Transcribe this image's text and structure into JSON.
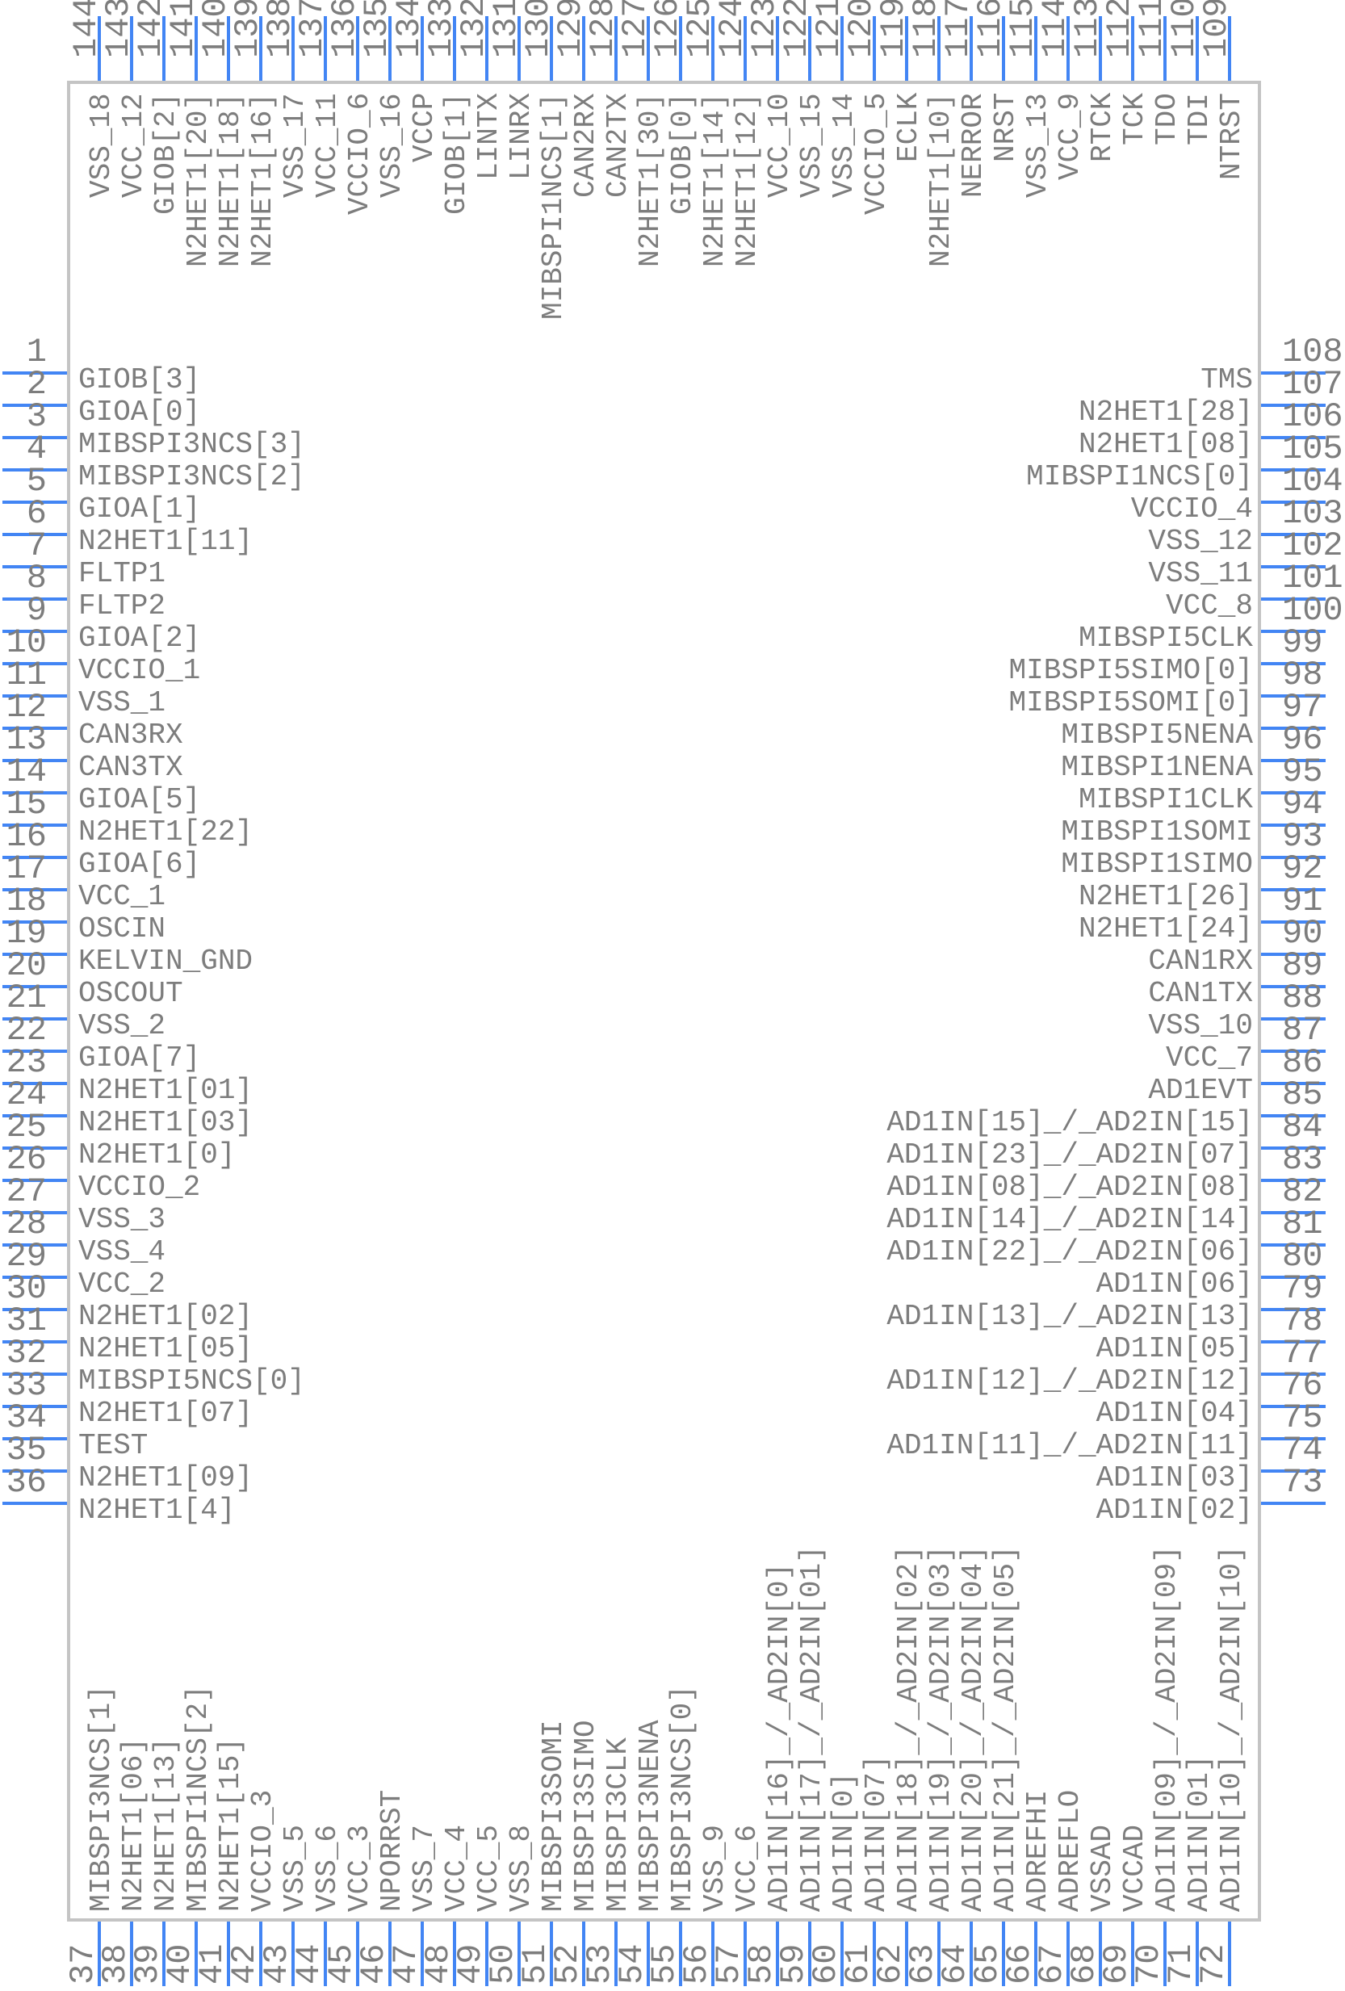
{
  "diagram_type": "chip-pinout",
  "colors": {
    "pin_line": "#4285f4",
    "text": "#7d7d7d",
    "body_outline": "#c4c4c4",
    "background": "#ffffff"
  },
  "chip": {
    "pins": {
      "top": [
        {
          "n": "144",
          "label": "VSS_18"
        },
        {
          "n": "143",
          "label": "VCC_12"
        },
        {
          "n": "142",
          "label": "GIOB[2]"
        },
        {
          "n": "141",
          "label": "N2HET1[20]"
        },
        {
          "n": "140",
          "label": "N2HET1[18]"
        },
        {
          "n": "139",
          "label": "N2HET1[16]"
        },
        {
          "n": "138",
          "label": "VSS_17"
        },
        {
          "n": "137",
          "label": "VCC_11"
        },
        {
          "n": "136",
          "label": "VCCIO_6"
        },
        {
          "n": "135",
          "label": "VSS_16"
        },
        {
          "n": "134",
          "label": "VCCP"
        },
        {
          "n": "133",
          "label": "GIOB[1]"
        },
        {
          "n": "132",
          "label": "LINTX"
        },
        {
          "n": "131",
          "label": "LINRX"
        },
        {
          "n": "130",
          "label": "MIBSPI1NCS[1]"
        },
        {
          "n": "129",
          "label": "CAN2RX"
        },
        {
          "n": "128",
          "label": "CAN2TX"
        },
        {
          "n": "127",
          "label": "N2HET1[30]"
        },
        {
          "n": "126",
          "label": "GIOB[0]"
        },
        {
          "n": "125",
          "label": "N2HET1[14]"
        },
        {
          "n": "124",
          "label": "N2HET1[12]"
        },
        {
          "n": "123",
          "label": "VCC_10"
        },
        {
          "n": "122",
          "label": "VSS_15"
        },
        {
          "n": "121",
          "label": "VSS_14"
        },
        {
          "n": "120",
          "label": "VCCIO_5"
        },
        {
          "n": "119",
          "label": "ECLK"
        },
        {
          "n": "118",
          "label": "N2HET1[10]"
        },
        {
          "n": "117",
          "label": "NERROR"
        },
        {
          "n": "116",
          "label": "NRST"
        },
        {
          "n": "115",
          "label": "VSS_13"
        },
        {
          "n": "114",
          "label": "VCC_9"
        },
        {
          "n": "113",
          "label": "RTCK"
        },
        {
          "n": "112",
          "label": "TCK"
        },
        {
          "n": "111",
          "label": "TDO"
        },
        {
          "n": "110",
          "label": "TDI"
        },
        {
          "n": "109",
          "label": "NTRST"
        }
      ],
      "left": [
        {
          "n": "1",
          "label": "GIOB[3]"
        },
        {
          "n": "2",
          "label": "GIOA[0]"
        },
        {
          "n": "3",
          "label": "MIBSPI3NCS[3]"
        },
        {
          "n": "4",
          "label": "MIBSPI3NCS[2]"
        },
        {
          "n": "5",
          "label": "GIOA[1]"
        },
        {
          "n": "6",
          "label": "N2HET1[11]"
        },
        {
          "n": "7",
          "label": "FLTP1"
        },
        {
          "n": "8",
          "label": "FLTP2"
        },
        {
          "n": "9",
          "label": "GIOA[2]"
        },
        {
          "n": "10",
          "label": "VCCIO_1"
        },
        {
          "n": "11",
          "label": "VSS_1"
        },
        {
          "n": "12",
          "label": "CAN3RX"
        },
        {
          "n": "13",
          "label": "CAN3TX"
        },
        {
          "n": "14",
          "label": "GIOA[5]"
        },
        {
          "n": "15",
          "label": "N2HET1[22]"
        },
        {
          "n": "16",
          "label": "GIOA[6]"
        },
        {
          "n": "17",
          "label": "VCC_1"
        },
        {
          "n": "18",
          "label": "OSCIN"
        },
        {
          "n": "19",
          "label": "KELVIN_GND"
        },
        {
          "n": "20",
          "label": "OSCOUT"
        },
        {
          "n": "21",
          "label": "VSS_2"
        },
        {
          "n": "22",
          "label": "GIOA[7]"
        },
        {
          "n": "23",
          "label": "N2HET1[01]"
        },
        {
          "n": "24",
          "label": "N2HET1[03]"
        },
        {
          "n": "25",
          "label": "N2HET1[0]"
        },
        {
          "n": "26",
          "label": "VCCIO_2"
        },
        {
          "n": "27",
          "label": "VSS_3"
        },
        {
          "n": "28",
          "label": "VSS_4"
        },
        {
          "n": "29",
          "label": "VCC_2"
        },
        {
          "n": "30",
          "label": "N2HET1[02]"
        },
        {
          "n": "31",
          "label": "N2HET1[05]"
        },
        {
          "n": "32",
          "label": "MIBSPI5NCS[0]"
        },
        {
          "n": "33",
          "label": "N2HET1[07]"
        },
        {
          "n": "34",
          "label": "TEST"
        },
        {
          "n": "35",
          "label": "N2HET1[09]"
        },
        {
          "n": "36",
          "label": "N2HET1[4]"
        }
      ],
      "right": [
        {
          "n": "108",
          "label": "TMS"
        },
        {
          "n": "107",
          "label": "N2HET1[28]"
        },
        {
          "n": "106",
          "label": "N2HET1[08]"
        },
        {
          "n": "105",
          "label": "MIBSPI1NCS[0]"
        },
        {
          "n": "104",
          "label": "VCCIO_4"
        },
        {
          "n": "103",
          "label": "VSS_12"
        },
        {
          "n": "102",
          "label": "VSS_11"
        },
        {
          "n": "101",
          "label": "VCC_8"
        },
        {
          "n": "100",
          "label": "MIBSPI5CLK"
        },
        {
          "n": "99",
          "label": "MIBSPI5SIMO[0]"
        },
        {
          "n": "98",
          "label": "MIBSPI5SOMI[0]"
        },
        {
          "n": "97",
          "label": "MIBSPI5NENA"
        },
        {
          "n": "96",
          "label": "MIBSPI1NENA"
        },
        {
          "n": "95",
          "label": "MIBSPI1CLK"
        },
        {
          "n": "94",
          "label": "MIBSPI1SOMI"
        },
        {
          "n": "93",
          "label": "MIBSPI1SIMO"
        },
        {
          "n": "92",
          "label": "N2HET1[26]"
        },
        {
          "n": "91",
          "label": "N2HET1[24]"
        },
        {
          "n": "90",
          "label": "CAN1RX"
        },
        {
          "n": "89",
          "label": "CAN1TX"
        },
        {
          "n": "88",
          "label": "VSS_10"
        },
        {
          "n": "87",
          "label": "VCC_7"
        },
        {
          "n": "86",
          "label": "AD1EVT"
        },
        {
          "n": "85",
          "label": "AD1IN[15]_/_AD2IN[15]"
        },
        {
          "n": "84",
          "label": "AD1IN[23]_/_AD2IN[07]"
        },
        {
          "n": "83",
          "label": "AD1IN[08]_/_AD2IN[08]"
        },
        {
          "n": "82",
          "label": "AD1IN[14]_/_AD2IN[14]"
        },
        {
          "n": "81",
          "label": "AD1IN[22]_/_AD2IN[06]"
        },
        {
          "n": "80",
          "label": "AD1IN[06]"
        },
        {
          "n": "79",
          "label": "AD1IN[13]_/_AD2IN[13]"
        },
        {
          "n": "78",
          "label": "AD1IN[05]"
        },
        {
          "n": "77",
          "label": "AD1IN[12]_/_AD2IN[12]"
        },
        {
          "n": "76",
          "label": "AD1IN[04]"
        },
        {
          "n": "75",
          "label": "AD1IN[11]_/_AD2IN[11]"
        },
        {
          "n": "74",
          "label": "AD1IN[03]"
        },
        {
          "n": "73",
          "label": "AD1IN[02]"
        }
      ],
      "bottom": [
        {
          "n": "37",
          "label": "MIBSPI3NCS[1]"
        },
        {
          "n": "38",
          "label": "N2HET1[06]"
        },
        {
          "n": "39",
          "label": "N2HET1[13]"
        },
        {
          "n": "40",
          "label": "MIBSPI1NCS[2]"
        },
        {
          "n": "41",
          "label": "N2HET1[15]"
        },
        {
          "n": "42",
          "label": "VCCIO_3"
        },
        {
          "n": "43",
          "label": "VSS_5"
        },
        {
          "n": "44",
          "label": "VSS_6"
        },
        {
          "n": "45",
          "label": "VCC_3"
        },
        {
          "n": "46",
          "label": "NPORRST"
        },
        {
          "n": "47",
          "label": "VSS_7"
        },
        {
          "n": "48",
          "label": "VCC_4"
        },
        {
          "n": "49",
          "label": "VCC_5"
        },
        {
          "n": "50",
          "label": "VSS_8"
        },
        {
          "n": "51",
          "label": "MIBSPI3SOMI"
        },
        {
          "n": "52",
          "label": "MIBSPI3SIMO"
        },
        {
          "n": "53",
          "label": "MIBSPI3CLK"
        },
        {
          "n": "54",
          "label": "MIBSPI3NENA"
        },
        {
          "n": "55",
          "label": "MIBSPI3NCS[0]"
        },
        {
          "n": "56",
          "label": "VSS_9"
        },
        {
          "n": "57",
          "label": "VCC_6"
        },
        {
          "n": "58",
          "label": "AD1IN[16]_/_AD2IN[0]"
        },
        {
          "n": "59",
          "label": "AD1IN[17]_/_AD2IN[01]"
        },
        {
          "n": "60",
          "label": "AD1IN[0]"
        },
        {
          "n": "61",
          "label": "AD1IN[07]"
        },
        {
          "n": "62",
          "label": "AD1IN[18]_/_AD2IN[02]"
        },
        {
          "n": "63",
          "label": "AD1IN[19]_/_AD2IN[03]"
        },
        {
          "n": "64",
          "label": "AD1IN[20]_/_AD2IN[04]"
        },
        {
          "n": "65",
          "label": "AD1IN[21]_/_AD2IN[05]"
        },
        {
          "n": "66",
          "label": "ADREFHI"
        },
        {
          "n": "67",
          "label": "ADREFLO"
        },
        {
          "n": "68",
          "label": "VSSAD"
        },
        {
          "n": "69",
          "label": "VCCAD"
        },
        {
          "n": "70",
          "label": "AD1IN[09]_/_AD2IN[09]"
        },
        {
          "n": "71",
          "label": "AD1IN[01]"
        },
        {
          "n": "72",
          "label": "AD1IN[10]_/_AD2IN[10]"
        }
      ]
    }
  }
}
